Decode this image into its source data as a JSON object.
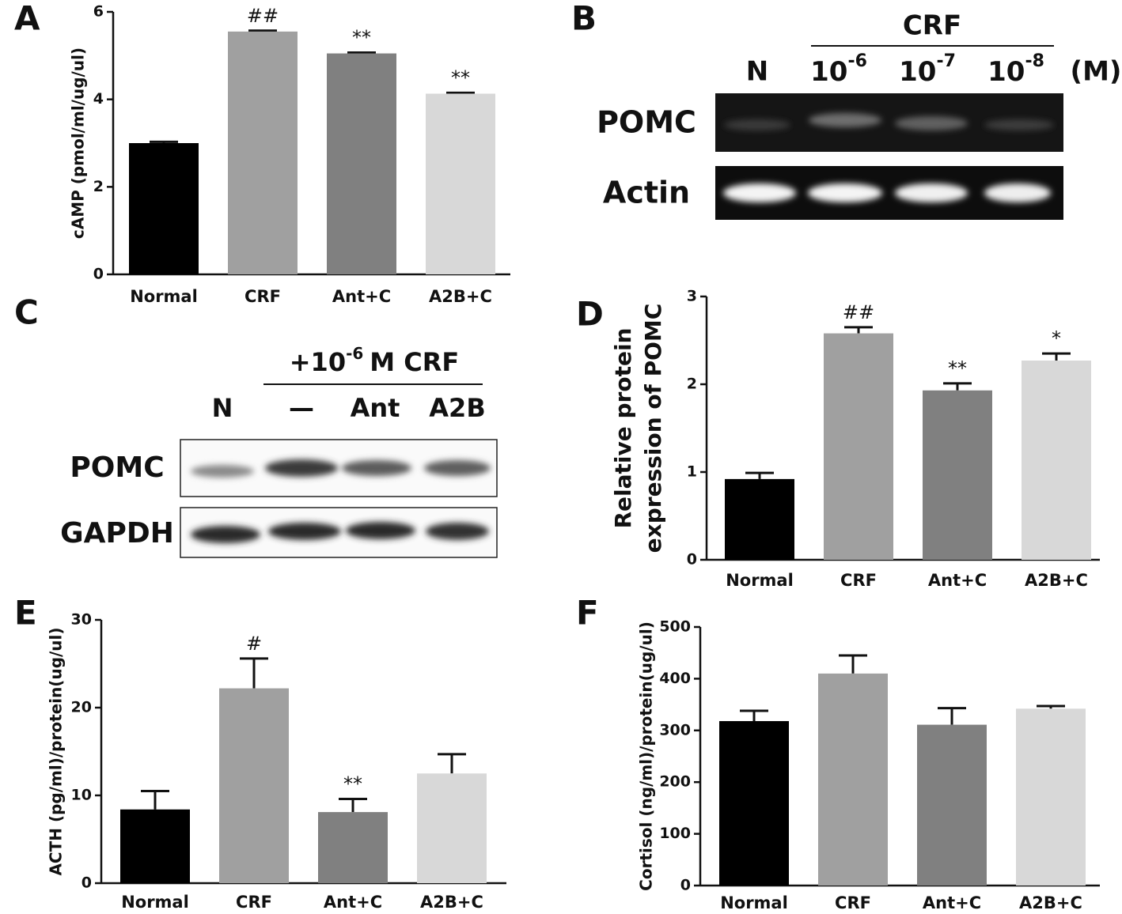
{
  "chart_data": [
    {
      "type": "bar",
      "label": "A",
      "ylabel": [
        "cAMP (pmol/ml/ug/ul)"
      ],
      "categories": [
        "Normal",
        "CRF",
        "Ant+C",
        "A2B+C"
      ],
      "values": [
        3.0,
        5.55,
        5.05,
        4.13
      ],
      "errors": [
        0.03,
        0.02,
        0.02,
        0.02
      ],
      "annotations": [
        null,
        "##",
        "**",
        "**"
      ],
      "colors": [
        "#000000",
        "#a0a0a0",
        "#808080",
        "#d8d8d8"
      ],
      "ylim": [
        0,
        6
      ],
      "yticks": [
        0,
        2,
        4,
        6
      ]
    },
    {
      "type": "bar",
      "label": "D",
      "ylabel": [
        "Relative protein",
        "expression of POMC"
      ],
      "categories": [
        "Normal",
        "CRF",
        "Ant+C",
        "A2B+C"
      ],
      "values": [
        0.92,
        2.58,
        1.93,
        2.27
      ],
      "errors": [
        0.07,
        0.07,
        0.08,
        0.08
      ],
      "annotations": [
        null,
        "##",
        "**",
        "*"
      ],
      "colors": [
        "#000000",
        "#a0a0a0",
        "#808080",
        "#d8d8d8"
      ],
      "ylim": [
        0,
        3
      ],
      "yticks": [
        0,
        1,
        2,
        3
      ]
    },
    {
      "type": "bar",
      "label": "E",
      "ylabel": [
        "ACTH (pg/ml)/protein(ug/ul)"
      ],
      "categories": [
        "Normal",
        "CRF",
        "Ant+C",
        "A2B+C"
      ],
      "values": [
        8.4,
        22.2,
        8.1,
        12.5
      ],
      "errors": [
        2.1,
        3.4,
        1.5,
        2.2
      ],
      "annotations": [
        null,
        "#",
        "**",
        null
      ],
      "colors": [
        "#000000",
        "#a0a0a0",
        "#808080",
        "#d8d8d8"
      ],
      "ylim": [
        0,
        30
      ],
      "yticks": [
        0,
        10,
        20,
        30
      ]
    },
    {
      "type": "bar",
      "label": "F",
      "ylabel": [
        "Cortisol (ng/ml)/protein(ug/ul)"
      ],
      "categories": [
        "Normal",
        "CRF",
        "Ant+C",
        "A2B+C"
      ],
      "values": [
        318,
        410,
        311,
        342
      ],
      "errors": [
        20,
        35,
        32,
        5
      ],
      "annotations": [
        null,
        null,
        null,
        null
      ],
      "colors": [
        "#000000",
        "#a0a0a0",
        "#808080",
        "#d8d8d8"
      ],
      "ylim": [
        0,
        500
      ],
      "yticks": [
        0,
        100,
        200,
        300,
        400,
        500
      ]
    }
  ],
  "blots": {
    "B": {
      "label": "B",
      "group": "CRF",
      "lanes": [
        {
          "text": "N"
        },
        {
          "text": "10",
          "sup": "-6"
        },
        {
          "text": "10",
          "sup": "-7"
        },
        {
          "text": "10",
          "sup": "-8"
        }
      ],
      "unit": "(M)",
      "rows": [
        "POMC",
        "Actin"
      ]
    },
    "C": {
      "label": "C",
      "group": {
        "text": "+10",
        "sup": "-6",
        "tail": "M CRF"
      },
      "lanes": [
        "N",
        "—",
        "Ant",
        "A2B"
      ],
      "rows": [
        "POMC",
        "GAPDH"
      ]
    }
  }
}
